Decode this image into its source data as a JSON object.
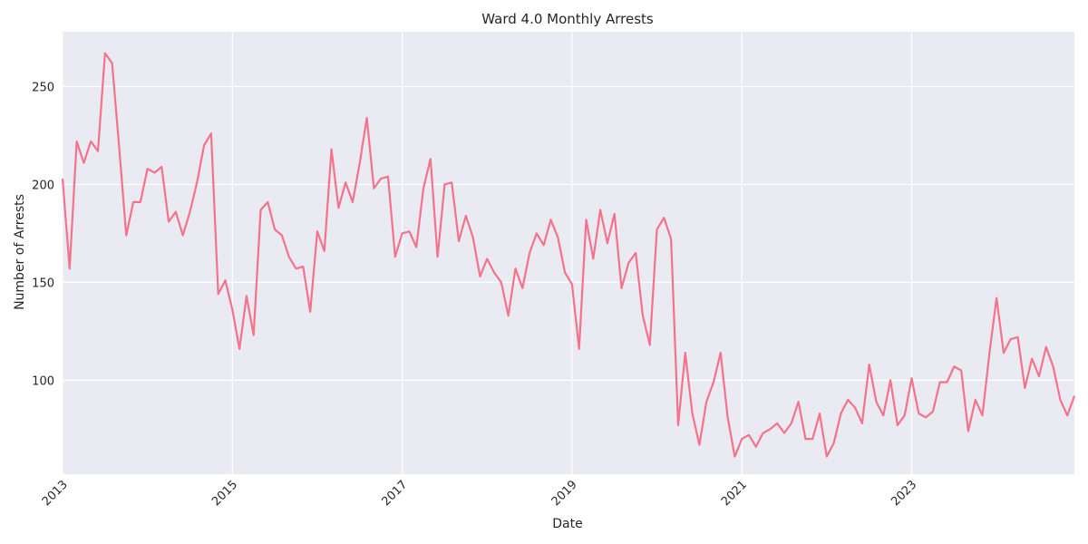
{
  "chart_data": {
    "type": "line",
    "title": "Ward 4.0 Monthly Arrests",
    "xlabel": "Date",
    "ylabel": "Number of Arrests",
    "x_start": "2013-01",
    "x_end": "2024-12",
    "xlim": [
      "2013-01",
      "2024-12"
    ],
    "ylim": [
      52,
      278
    ],
    "x_ticks": [
      "2013",
      "2015",
      "2017",
      "2019",
      "2021",
      "2023"
    ],
    "y_ticks": [
      100,
      150,
      200,
      250
    ],
    "grid": true,
    "background_color": "#eaeaf2",
    "grid_color": "#ffffff",
    "line_color": "#f4728a",
    "series": [
      {
        "x": [
          "2013-01",
          "2013-02",
          "2013-03",
          "2013-04",
          "2013-05",
          "2013-06",
          "2013-07",
          "2013-08",
          "2013-09",
          "2013-10",
          "2013-11",
          "2013-12",
          "2014-01",
          "2014-02",
          "2014-03",
          "2014-04",
          "2014-05",
          "2014-06",
          "2014-07",
          "2014-08",
          "2014-09",
          "2014-10",
          "2014-11",
          "2014-12",
          "2015-01",
          "2015-02",
          "2015-03",
          "2015-04",
          "2015-05",
          "2015-06",
          "2015-07",
          "2015-08",
          "2015-09",
          "2015-10",
          "2015-11",
          "2015-12",
          "2016-01",
          "2016-02",
          "2016-03",
          "2016-04",
          "2016-05",
          "2016-06",
          "2016-07",
          "2016-08",
          "2016-09",
          "2016-10",
          "2016-11",
          "2016-12",
          "2017-01",
          "2017-02",
          "2017-03",
          "2017-04",
          "2017-05",
          "2017-06",
          "2017-07",
          "2017-08",
          "2017-09",
          "2017-10",
          "2017-11",
          "2017-12",
          "2018-01",
          "2018-02",
          "2018-03",
          "2018-04",
          "2018-05",
          "2018-06",
          "2018-07",
          "2018-08",
          "2018-09",
          "2018-10",
          "2018-11",
          "2018-12",
          "2019-01",
          "2019-02",
          "2019-03",
          "2019-04",
          "2019-05",
          "2019-06",
          "2019-07",
          "2019-08",
          "2019-09",
          "2019-10",
          "2019-11",
          "2019-12",
          "2020-01",
          "2020-02",
          "2020-03",
          "2020-04",
          "2020-05",
          "2020-06",
          "2020-07",
          "2020-08",
          "2020-09",
          "2020-10",
          "2020-11",
          "2020-12",
          "2021-01",
          "2021-02",
          "2021-03",
          "2021-04",
          "2021-05",
          "2021-06",
          "2021-07",
          "2021-08",
          "2021-09",
          "2021-10",
          "2021-11",
          "2021-12",
          "2022-01",
          "2022-02",
          "2022-03",
          "2022-04",
          "2022-05",
          "2022-06",
          "2022-07",
          "2022-08",
          "2022-09",
          "2022-10",
          "2022-11",
          "2022-12",
          "2023-01",
          "2023-02",
          "2023-03",
          "2023-04",
          "2023-05",
          "2023-06",
          "2023-07",
          "2023-08",
          "2023-09",
          "2023-10",
          "2023-11",
          "2023-12",
          "2024-01",
          "2024-02",
          "2024-03",
          "2024-04",
          "2024-05",
          "2024-06",
          "2024-07",
          "2024-08",
          "2024-09",
          "2024-10",
          "2024-11",
          "2024-12"
        ],
        "values": [
          203,
          157,
          222,
          211,
          222,
          217,
          267,
          262,
          219,
          174,
          191,
          191,
          208,
          206,
          209,
          181,
          186,
          174,
          186,
          201,
          220,
          226,
          144,
          151,
          136,
          116,
          143,
          123,
          187,
          191,
          177,
          174,
          163,
          157,
          158,
          135,
          176,
          166,
          218,
          188,
          201,
          191,
          211,
          234,
          198,
          203,
          204,
          163,
          175,
          176,
          168,
          198,
          213,
          163,
          200,
          201,
          171,
          184,
          173,
          153,
          162,
          155,
          150,
          133,
          157,
          147,
          165,
          175,
          169,
          182,
          173,
          155,
          149,
          116,
          182,
          162,
          187,
          170,
          185,
          147,
          160,
          165,
          133,
          118,
          177,
          183,
          172,
          77,
          114,
          83,
          67,
          89,
          99,
          114,
          81,
          61,
          70,
          72,
          66,
          73,
          75,
          78,
          73,
          78,
          89,
          70,
          70,
          83,
          61,
          68,
          83,
          90,
          86,
          78,
          108,
          89,
          82,
          100,
          77,
          82,
          101,
          83,
          81,
          84,
          99,
          99,
          107,
          105,
          74,
          90,
          82,
          114,
          142,
          114,
          121,
          122,
          96,
          111,
          102,
          117,
          107,
          90,
          82,
          92
        ]
      }
    ]
  }
}
